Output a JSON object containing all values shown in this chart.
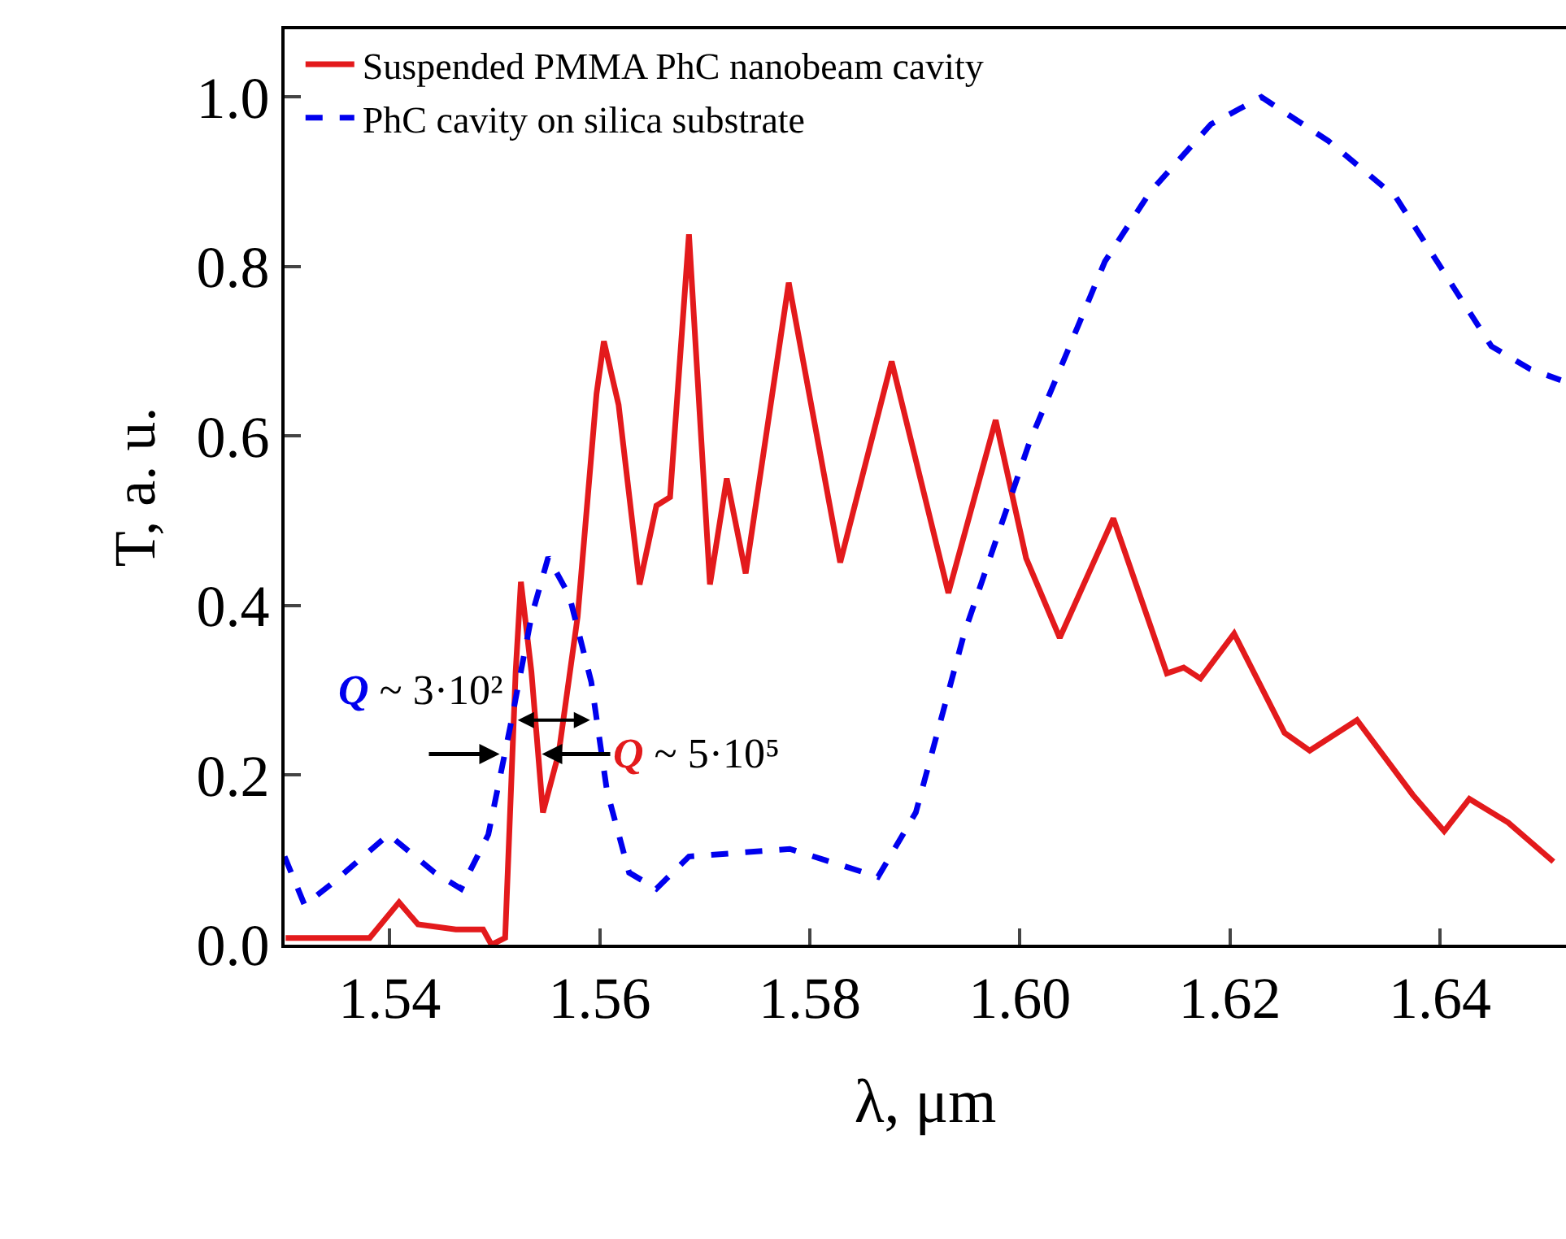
{
  "chart_data": {
    "type": "line",
    "xlabel": "λ, μm",
    "ylabel": "T, a. u.",
    "xlim": [
      1.53,
      1.652
    ],
    "ylim": [
      0,
      1.08
    ],
    "xticks": [
      {
        "value": 1.54,
        "label": "1.54"
      },
      {
        "value": 1.56,
        "label": "1.56"
      },
      {
        "value": 1.58,
        "label": "1.58"
      },
      {
        "value": 1.6,
        "label": "1.60"
      },
      {
        "value": 1.62,
        "label": "1.62"
      },
      {
        "value": 1.64,
        "label": "1.64"
      }
    ],
    "yticks": [
      {
        "value": 0,
        "label": "0.0"
      },
      {
        "value": 0.2,
        "label": "0.2"
      },
      {
        "value": 0.4,
        "label": "0.4"
      },
      {
        "value": 0.6,
        "label": "0.6"
      },
      {
        "value": 0.8,
        "label": "0.8"
      },
      {
        "value": 1,
        "label": "1.0"
      }
    ],
    "grid": false,
    "legend": "top left",
    "series": [
      {
        "name": "Suspended PMMA PhC nanobeam cavity",
        "color": "#e31a1c",
        "line_style": "solid",
        "x": [
          1.5301,
          1.5381,
          1.5409,
          1.5427,
          1.5463,
          1.5489,
          1.5497,
          1.551,
          1.552,
          1.5525,
          1.5535,
          1.5546,
          1.5561,
          1.5579,
          1.5597,
          1.5604,
          1.5618,
          1.5638,
          1.5654,
          1.5667,
          1.5685,
          1.5705,
          1.5721,
          1.5739,
          1.578,
          1.5829,
          1.5878,
          1.5932,
          1.5977,
          1.6006,
          1.6038,
          1.6089,
          1.614,
          1.6156,
          1.6172,
          1.6204,
          1.6252,
          1.6276,
          1.6321,
          1.6374,
          1.6404,
          1.6428,
          1.6465,
          1.6508
        ],
        "values": [
          0.008,
          0.008,
          0.05,
          0.024,
          0.018,
          0.018,
          0.0,
          0.008,
          0.322,
          0.428,
          0.322,
          0.156,
          0.226,
          0.387,
          0.65,
          0.712,
          0.637,
          0.425,
          0.518,
          0.528,
          0.838,
          0.425,
          0.55,
          0.438,
          0.781,
          0.451,
          0.688,
          0.415,
          0.619,
          0.456,
          0.362,
          0.503,
          0.32,
          0.327,
          0.314,
          0.367,
          0.25,
          0.229,
          0.265,
          0.177,
          0.134,
          0.172,
          0.144,
          0.098
        ]
      },
      {
        "name": "PhC cavity on silica substrate",
        "color": "#0000ee",
        "line_style": "dashed",
        "x": [
          1.53,
          1.5319,
          1.5345,
          1.5399,
          1.5443,
          1.5468,
          1.5494,
          1.5515,
          1.5535,
          1.5551,
          1.5571,
          1.5592,
          1.5607,
          1.5628,
          1.5654,
          1.5685,
          1.5781,
          1.5865,
          1.5901,
          1.5947,
          1.6009,
          1.6081,
          1.6124,
          1.6182,
          1.623,
          1.6294,
          1.6358,
          1.6406,
          1.6449,
          1.6486,
          1.6515
        ],
        "values": [
          0.104,
          0.047,
          0.072,
          0.13,
          0.085,
          0.066,
          0.13,
          0.258,
          0.387,
          0.457,
          0.412,
          0.31,
          0.181,
          0.085,
          0.066,
          0.104,
          0.113,
          0.08,
          0.156,
          0.367,
          0.592,
          0.806,
          0.888,
          0.968,
          1.0,
          0.948,
          0.882,
          0.789,
          0.706,
          0.679,
          0.666
        ]
      }
    ],
    "annotations": [
      {
        "text": "Q ~ 5·10⁵",
        "x": 1.5545,
        "y": 0.225
      },
      {
        "text": "Q ~ 3·10²",
        "x": 1.5522,
        "y": 0.265
      }
    ]
  }
}
